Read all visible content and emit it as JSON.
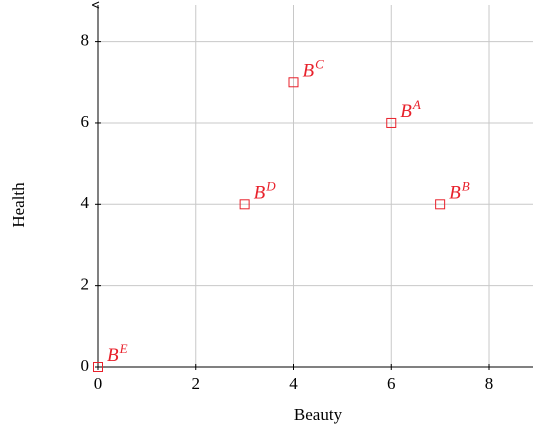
{
  "chart_data": {
    "type": "scatter",
    "x": [
      6,
      7,
      4,
      3,
      0
    ],
    "values": [
      6,
      4,
      7,
      4,
      0
    ],
    "point_labels": [
      [
        "B",
        "A"
      ],
      [
        "B",
        "B"
      ],
      [
        "B",
        "C"
      ],
      [
        "B",
        "D"
      ],
      [
        "B",
        "E"
      ]
    ],
    "color": "#e8212b",
    "xlabel": "Beauty",
    "ylabel": "Health",
    "xlim": [
      0,
      8.9
    ],
    "ylim": [
      0,
      8.9
    ],
    "xticks": [
      0,
      2,
      4,
      6,
      8
    ],
    "yticks": [
      0,
      2,
      4,
      6,
      8
    ],
    "grid": true
  }
}
